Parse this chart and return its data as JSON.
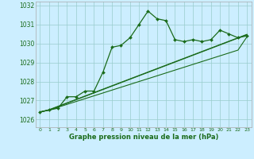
{
  "title": "Graphe pression niveau de la mer (hPa)",
  "background_color": "#cceeff",
  "grid_color": "#99cccc",
  "line_color": "#1a6b1a",
  "xlim": [
    -0.5,
    23.5
  ],
  "ylim": [
    1025.6,
    1032.2
  ],
  "yticks": [
    1026,
    1027,
    1028,
    1029,
    1030,
    1031,
    1032
  ],
  "xticks": [
    0,
    1,
    2,
    3,
    4,
    5,
    6,
    7,
    8,
    9,
    10,
    11,
    12,
    13,
    14,
    15,
    16,
    17,
    18,
    19,
    20,
    21,
    22,
    23
  ],
  "main_series": [
    1026.4,
    1026.5,
    1026.6,
    1027.2,
    1027.2,
    1027.5,
    1027.5,
    1028.5,
    1029.8,
    1029.9,
    1030.3,
    1031.0,
    1031.7,
    1031.3,
    1031.2,
    1030.2,
    1030.1,
    1030.2,
    1030.1,
    1030.2,
    1030.7,
    1030.5,
    1030.3,
    1030.4
  ],
  "linear_series": [
    [
      1026.4,
      1026.5,
      1026.65,
      1026.8,
      1026.95,
      1027.1,
      1027.25,
      1027.4,
      1027.55,
      1027.7,
      1027.85,
      1028.0,
      1028.15,
      1028.3,
      1028.45,
      1028.6,
      1028.75,
      1028.9,
      1029.05,
      1029.2,
      1029.35,
      1029.5,
      1029.65,
      1030.35
    ],
    [
      1026.4,
      1026.5,
      1026.68,
      1026.86,
      1027.04,
      1027.22,
      1027.4,
      1027.58,
      1027.76,
      1027.94,
      1028.12,
      1028.3,
      1028.48,
      1028.66,
      1028.84,
      1029.02,
      1029.2,
      1029.38,
      1029.56,
      1029.74,
      1029.92,
      1030.1,
      1030.28,
      1030.46
    ],
    [
      1026.4,
      1026.52,
      1026.7,
      1026.88,
      1027.06,
      1027.24,
      1027.42,
      1027.6,
      1027.78,
      1027.96,
      1028.14,
      1028.32,
      1028.5,
      1028.68,
      1028.86,
      1029.04,
      1029.22,
      1029.4,
      1029.58,
      1029.76,
      1029.94,
      1030.12,
      1030.3,
      1030.48
    ]
  ]
}
